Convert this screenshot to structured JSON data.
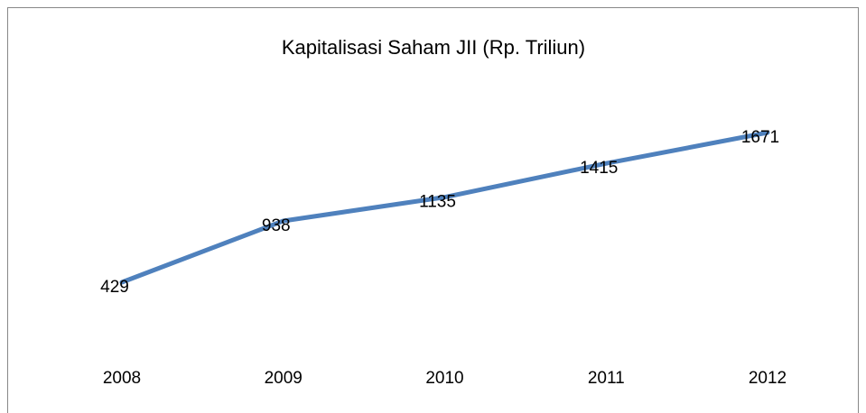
{
  "chart_data": {
    "type": "line",
    "title": "Kapitalisasi Saham JII (Rp. Triliun)",
    "categories": [
      "2008",
      "2009",
      "2010",
      "2011",
      "2012"
    ],
    "series": [
      {
        "color": "#4f81bd",
        "values": [
          429,
          938,
          1135,
          1415,
          1671
        ]
      }
    ]
  }
}
